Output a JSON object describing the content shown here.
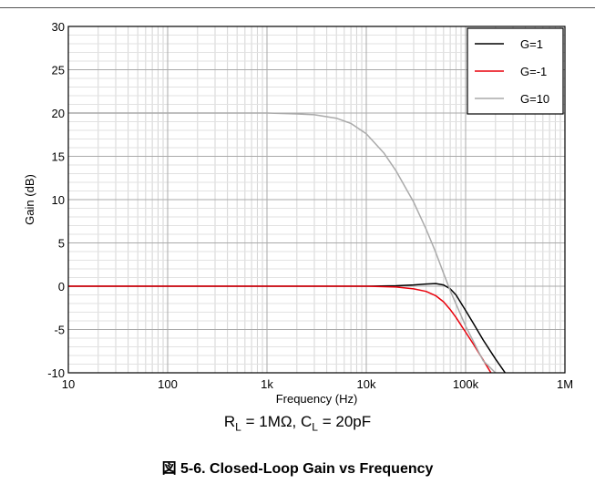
{
  "chart_data": {
    "type": "line",
    "xscale": "log",
    "xlim": [
      10,
      1000000
    ],
    "ylim": [
      -10,
      30
    ],
    "xticks": [
      {
        "value": 10,
        "label": "10"
      },
      {
        "value": 100,
        "label": "100"
      },
      {
        "value": 1000,
        "label": "1k"
      },
      {
        "value": 10000,
        "label": "10k"
      },
      {
        "value": 100000,
        "label": "100k"
      },
      {
        "value": 1000000,
        "label": "1M"
      }
    ],
    "yticks": [
      {
        "value": 30,
        "label": "30"
      },
      {
        "value": 25,
        "label": "25"
      },
      {
        "value": 20,
        "label": "20"
      },
      {
        "value": 15,
        "label": "15"
      },
      {
        "value": 10,
        "label": "10"
      },
      {
        "value": 5,
        "label": "5"
      },
      {
        "value": 0,
        "label": "0"
      },
      {
        "value": -5,
        "label": "-5"
      },
      {
        "value": -10,
        "label": "-10"
      }
    ],
    "xlabel": "Frequency (Hz)",
    "ylabel": "Gain (dB)",
    "grid": true,
    "legend_position": "top-right",
    "series": [
      {
        "name": "G=1",
        "color": "#000000",
        "x": [
          10,
          100,
          1000,
          10000,
          20000,
          30000,
          40000,
          50000,
          60000,
          70000,
          80000,
          100000,
          120000,
          150000,
          200000,
          250000
        ],
        "y": [
          0,
          0,
          0,
          0,
          0.05,
          0.15,
          0.25,
          0.3,
          0.15,
          -0.3,
          -1,
          -2.8,
          -4.3,
          -6.2,
          -8.4,
          -10
        ]
      },
      {
        "name": "G=-1",
        "color": "#e8000b",
        "x": [
          10,
          100,
          1000,
          10000,
          15000,
          20000,
          30000,
          40000,
          50000,
          60000,
          70000,
          80000,
          100000,
          120000,
          150000,
          180000
        ],
        "y": [
          0,
          0,
          0,
          0,
          -0.05,
          -0.1,
          -0.3,
          -0.6,
          -1.1,
          -1.8,
          -2.7,
          -3.6,
          -5.3,
          -6.7,
          -8.5,
          -10
        ]
      },
      {
        "name": "G=10",
        "color": "#aaaaaa",
        "x": [
          10,
          100,
          1000,
          2000,
          3000,
          5000,
          7000,
          10000,
          15000,
          20000,
          30000,
          40000,
          50000,
          60000,
          70000,
          100000,
          150000,
          200000
        ],
        "y": [
          20,
          20,
          20,
          19.9,
          19.8,
          19.4,
          18.8,
          17.6,
          15.4,
          13.3,
          9.7,
          6.6,
          3.9,
          1.5,
          -0.5,
          -4.6,
          -8.6,
          -10
        ]
      }
    ]
  },
  "conditions": {
    "r_main": "R",
    "r_sub": "L",
    "r_val": " = 1MΩ, ",
    "c_main": "C",
    "c_sub": "L",
    "c_val": " = 20pF"
  },
  "caption": "図 5-6. Closed-Loop Gain vs Frequency"
}
